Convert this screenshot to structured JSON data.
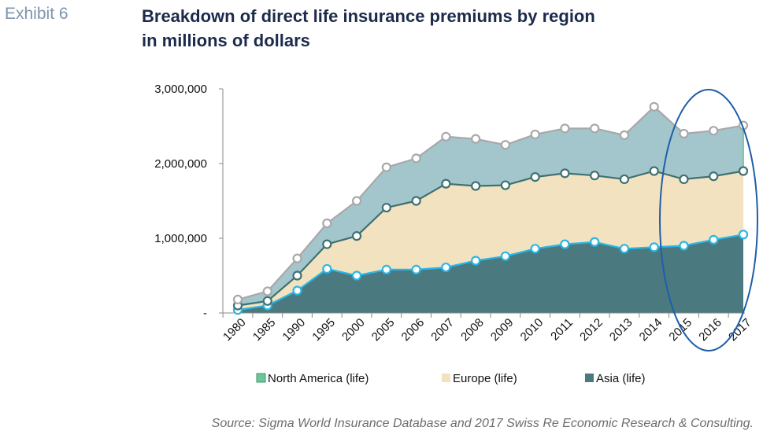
{
  "header": {
    "exhibit": "Exhibit 6",
    "title_line1": "Breakdown of direct life insurance premiums by region",
    "title_line2": "in millions of dollars"
  },
  "source": "Source: Sigma World Insurance Database and 2017 Swiss Re Economic Research & Consulting.",
  "chart_data": {
    "type": "area",
    "stacked": true,
    "categories": [
      "1980",
      "1985",
      "1990",
      "1995",
      "2000",
      "2005",
      "2006",
      "2007",
      "2008",
      "2009",
      "2010",
      "2011",
      "2012",
      "2013",
      "2014",
      "2015",
      "2016",
      "2017"
    ],
    "ylim": [
      0,
      3000000
    ],
    "yticks": [
      0,
      1000000,
      2000000,
      3000000
    ],
    "ytick_labels": [
      "-",
      "1,000,000",
      "2,000,000",
      "3,000,000"
    ],
    "legend_position": "bottom",
    "series": [
      {
        "name": "Asia (life)",
        "color": "#4a7a80",
        "marker": "#29b6e6",
        "values": [
          40000,
          100000,
          300000,
          590000,
          500000,
          580000,
          580000,
          610000,
          700000,
          760000,
          860000,
          920000,
          950000,
          860000,
          880000,
          900000,
          980000,
          1050000
        ]
      },
      {
        "name": "Europe (life)",
        "color": "#f2e2c0",
        "marker": "#3f7172",
        "values": [
          60000,
          60000,
          200000,
          330000,
          530000,
          830000,
          920000,
          1120000,
          1000000,
          950000,
          960000,
          950000,
          890000,
          930000,
          1020000,
          890000,
          850000,
          850000
        ]
      },
      {
        "name": "North America (life)",
        "color": "#a3c6cc",
        "marker": "#a8a8a8",
        "values": [
          80000,
          130000,
          230000,
          280000,
          470000,
          540000,
          570000,
          630000,
          630000,
          540000,
          570000,
          600000,
          630000,
          590000,
          860000,
          610000,
          610000,
          610000
        ]
      }
    ],
    "legend": [
      {
        "label": "North America (life)",
        "color": "#6fc59a"
      },
      {
        "label": "Europe (life)",
        "color": "#f2e2c0"
      },
      {
        "label": "Asia (life)",
        "color": "#4a7a80"
      }
    ],
    "annotation": {
      "type": "ellipse",
      "color": "#1f5ea8",
      "around_categories": [
        "2015",
        "2016",
        "2017"
      ]
    }
  }
}
